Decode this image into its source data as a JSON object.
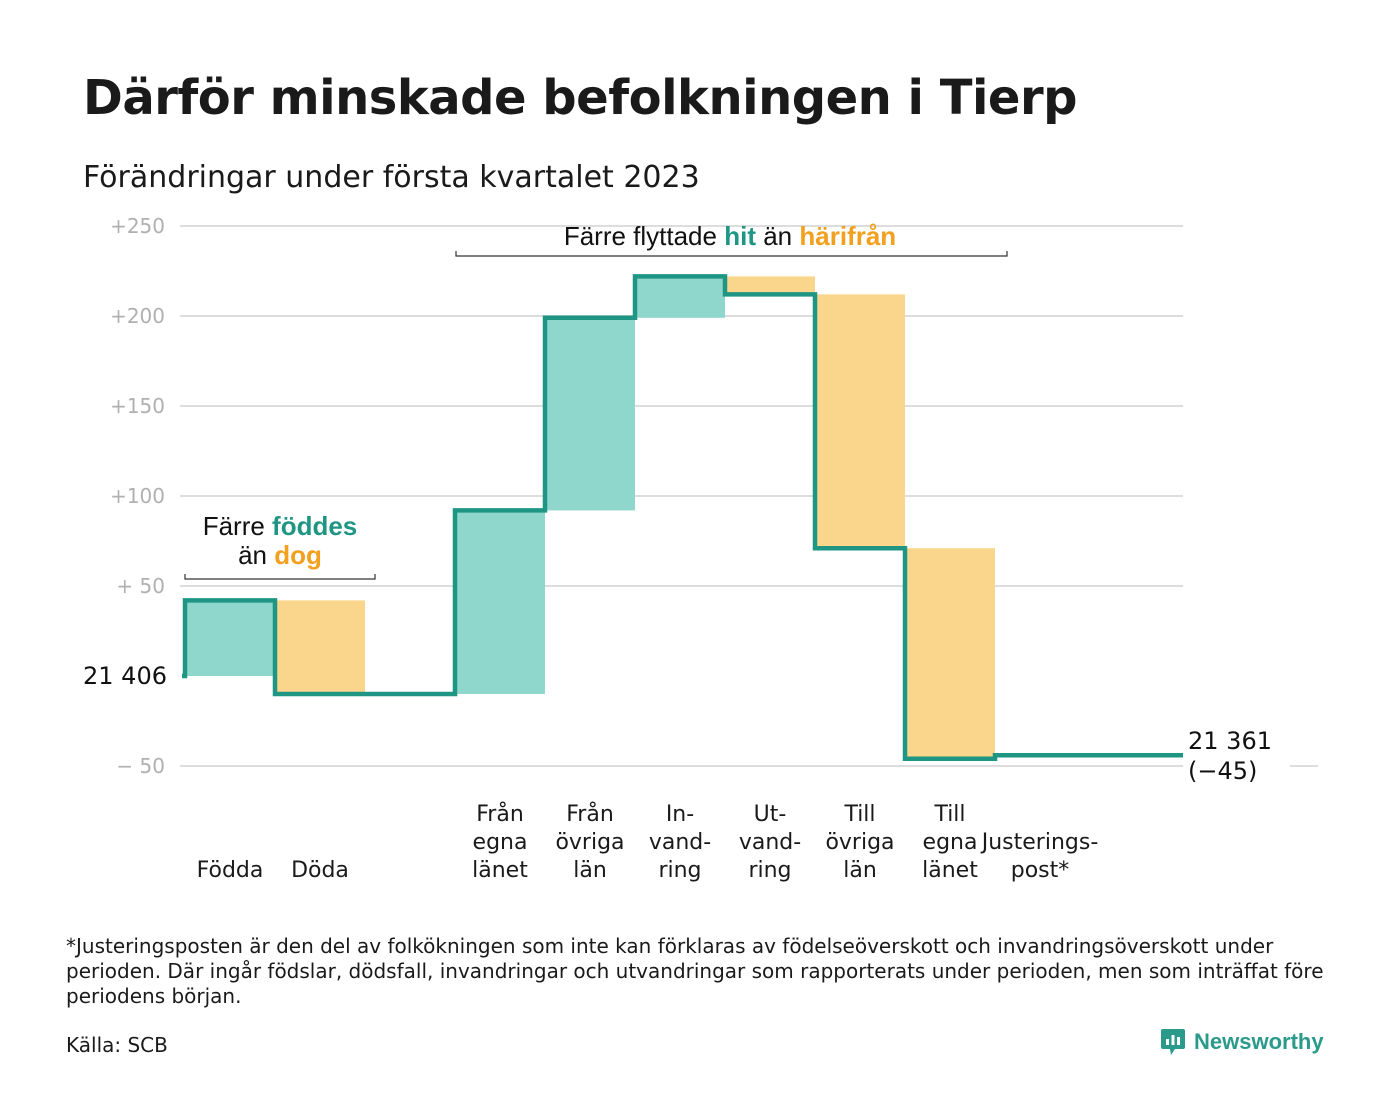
{
  "title": "Därför minskade befolkningen i Tierp",
  "subtitle": "Förändringar under första kvartalet 2023",
  "colors": {
    "inflow": "#8fd6cc",
    "outflow": "#fad68c",
    "line": "#1f9684",
    "inflow_text": "#1f9684",
    "outflow_text": "#f2a01e",
    "grid": "#dddddd"
  },
  "chart_data": {
    "type": "waterfall",
    "ylim": [
      -55,
      250
    ],
    "yticks": [
      {
        "value": 250,
        "label": "+250"
      },
      {
        "value": 200,
        "label": "+200"
      },
      {
        "value": 150,
        "label": "+150"
      },
      {
        "value": 100,
        "label": "+100"
      },
      {
        "value": 50,
        "label": "+ 50"
      },
      {
        "value": -50,
        "label": "− 50"
      }
    ],
    "start": {
      "value": 21406,
      "label": "21 406"
    },
    "end": {
      "value": 21361,
      "label": "21 361",
      "change_label": "(−45)"
    },
    "steps": [
      {
        "name": "Födda",
        "lines": [
          "Födda"
        ],
        "change": 42,
        "kind": "in"
      },
      {
        "name": "Döda",
        "lines": [
          "Döda"
        ],
        "change": -52,
        "kind": "out"
      },
      {
        "name": "gap",
        "lines": [],
        "change": 0,
        "kind": "none"
      },
      {
        "name": "Från egna länet",
        "lines": [
          "Från",
          "egna",
          "länet"
        ],
        "change": 102,
        "kind": "in"
      },
      {
        "name": "Från övriga län",
        "lines": [
          "Från",
          "övriga",
          "län"
        ],
        "change": 107,
        "kind": "in"
      },
      {
        "name": "Invandring",
        "lines": [
          "In-",
          "vand-",
          "ring"
        ],
        "change": 23,
        "kind": "in"
      },
      {
        "name": "Utvandring",
        "lines": [
          "Ut-",
          "vand-",
          "ring"
        ],
        "change": -10,
        "kind": "out"
      },
      {
        "name": "Till övriga län",
        "lines": [
          "Till",
          "övriga",
          "län"
        ],
        "change": -141,
        "kind": "out"
      },
      {
        "name": "Till egna länet",
        "lines": [
          "Till",
          "egna",
          "länet"
        ],
        "change": -117,
        "kind": "out"
      },
      {
        "name": "Justeringspost*",
        "lines": [
          "Justerings-",
          "post*"
        ],
        "change": 2,
        "kind": "adj"
      }
    ],
    "annotations": [
      {
        "parts": [
          {
            "text": "Färre ",
            "style": "normal"
          },
          {
            "text": "föddes",
            "style": "in"
          }
        ]
      },
      {
        "parts": [
          {
            "text": "än ",
            "style": "normal"
          },
          {
            "text": "dog",
            "style": "out"
          }
        ]
      },
      {
        "parts": [
          {
            "text": "Färre flyttade ",
            "style": "normal"
          },
          {
            "text": "hit",
            "style": "in"
          },
          {
            "text": " än ",
            "style": "normal"
          },
          {
            "text": "härifrån",
            "style": "out"
          }
        ]
      }
    ]
  },
  "footnote": "*Justeringsposten är den del av folkökningen som inte kan förklaras av födelseöverskott och invandringsöverskott under perioden. Där ingår födslar, dödsfall, invandringar och utvandringar som rapporterats under perioden, men som inträffat före periodens början.",
  "source": "Källa: SCB",
  "brand": {
    "name": "Newsworthy",
    "icon": "newsworthy-logo-icon"
  }
}
